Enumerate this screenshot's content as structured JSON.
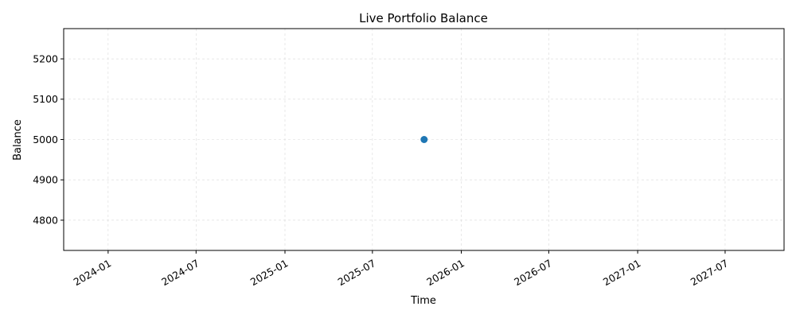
{
  "chart_data": {
    "type": "scatter",
    "title": "Live Portfolio Balance",
    "xlabel": "Time",
    "ylabel": "Balance",
    "x_scale": "date",
    "xlim": [
      "2023-10-01",
      "2027-10-31"
    ],
    "ylim": [
      4725,
      5275
    ],
    "x_ticks": [
      "2024-01",
      "2024-07",
      "2025-01",
      "2025-07",
      "2026-01",
      "2026-07",
      "2027-01",
      "2027-07"
    ],
    "y_ticks": [
      4800,
      4900,
      5000,
      5100,
      5200
    ],
    "grid": true,
    "series": [
      {
        "color": "#1f77b4",
        "points": [
          {
            "x": "2025-10-16",
            "y": 5000
          }
        ]
      }
    ]
  }
}
